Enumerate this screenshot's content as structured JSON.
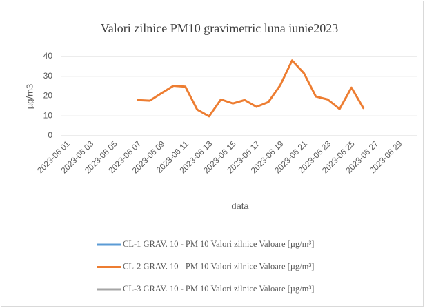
{
  "chart_data": {
    "type": "line",
    "title": "Valori zilnice PM10 gravimetric luna iunie2023",
    "y_label": "µg/m3",
    "x_label": "data",
    "categories": [
      "2023-06 01",
      null,
      "2023-06 03",
      null,
      "2023-06 05",
      null,
      "2023-06 07",
      null,
      "2023-06 09",
      null,
      "2023-06 11",
      null,
      "2023-06 13",
      null,
      "2023-06 15",
      null,
      "2023-06 17",
      null,
      "2023-06 19",
      null,
      "2023-06 21",
      null,
      "2023-06 23",
      null,
      "2023-06 25",
      null,
      "2023-06 27",
      null,
      "2023-06 29",
      null
    ],
    "series": [
      {
        "name": "CL-1 GRAV. 10 - PM 10 Valori zilnice Valoare [µg/m³]",
        "color": "#5b9bd5",
        "values": [
          null,
          null,
          null,
          null,
          null,
          null,
          null,
          null,
          null,
          null,
          null,
          null,
          null,
          null,
          null,
          null,
          null,
          null,
          null,
          null,
          null,
          null,
          null,
          null,
          null,
          null,
          null,
          null,
          null,
          null
        ]
      },
      {
        "name": "CL-2 GRAV. 10 - PM 10 Valori zilnice Valoare [µg/m³]",
        "color": "#ed7d31",
        "values": [
          null,
          null,
          null,
          null,
          null,
          null,
          18,
          17.7,
          21.5,
          25.2,
          24.8,
          13.2,
          9.8,
          18.3,
          16.3,
          18,
          14.6,
          17,
          25.5,
          38,
          31.5,
          19.8,
          18.3,
          13.5,
          24.3,
          14,
          null,
          null,
          null,
          null
        ]
      },
      {
        "name": "CL-3 GRAV. 10 - PM 10 Valori zilnice Valoare [µg/m³]",
        "color": "#a5a5a5",
        "values": [
          null,
          null,
          null,
          null,
          null,
          null,
          null,
          null,
          null,
          null,
          null,
          null,
          null,
          null,
          null,
          null,
          null,
          null,
          null,
          null,
          null,
          null,
          null,
          null,
          null,
          null,
          null,
          null,
          null,
          null
        ]
      }
    ],
    "ylim": [
      0,
      40
    ],
    "yticks": [
      0,
      10,
      20,
      30,
      40
    ],
    "grid": true,
    "legend": "bottom"
  }
}
